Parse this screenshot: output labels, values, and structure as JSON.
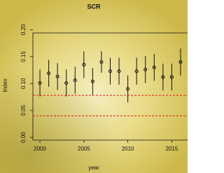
{
  "chart_data": {
    "type": "errorbar",
    "title": "SCR",
    "x_label": "year",
    "y_label": "Index",
    "x": [
      2000,
      2001,
      2002,
      2003,
      2004,
      2005,
      2006,
      2007,
      2008,
      2009,
      2010,
      2011,
      2012,
      2013,
      2014,
      2015,
      2016
    ],
    "series": [
      {
        "color": "#111111",
        "values": [
          0.101,
          0.119,
          0.113,
          0.101,
          0.106,
          0.135,
          0.104,
          0.14,
          0.123,
          0.123,
          0.09,
          0.123,
          0.126,
          0.13,
          0.112,
          0.112,
          0.14
        ],
        "lower": [
          0.076,
          0.094,
          0.088,
          0.076,
          0.081,
          0.11,
          0.079,
          0.12,
          0.098,
          0.098,
          0.065,
          0.098,
          0.101,
          0.105,
          0.087,
          0.087,
          0.115
        ],
        "upper": [
          0.126,
          0.144,
          0.138,
          0.126,
          0.131,
          0.16,
          0.129,
          0.16,
          0.148,
          0.148,
          0.115,
          0.148,
          0.151,
          0.155,
          0.137,
          0.137,
          0.165
        ]
      }
    ],
    "reference_lines": [
      0.078,
      0.04
    ],
    "reference_color": "#e0201c",
    "xlim": [
      1999.2,
      2016.8
    ],
    "ylim": [
      -0.005,
      0.194
    ],
    "xticks": [
      2000,
      2005,
      2010,
      2015
    ],
    "yticks": [
      {
        "value": 0,
        "label": "0.00"
      },
      {
        "value": 0.05,
        "label": "0.05"
      },
      {
        "value": 0.1,
        "label": "0.10"
      },
      {
        "value": 0.15,
        "label": "0.15"
      },
      {
        "value": 0.2,
        "label": "0.20"
      }
    ]
  }
}
